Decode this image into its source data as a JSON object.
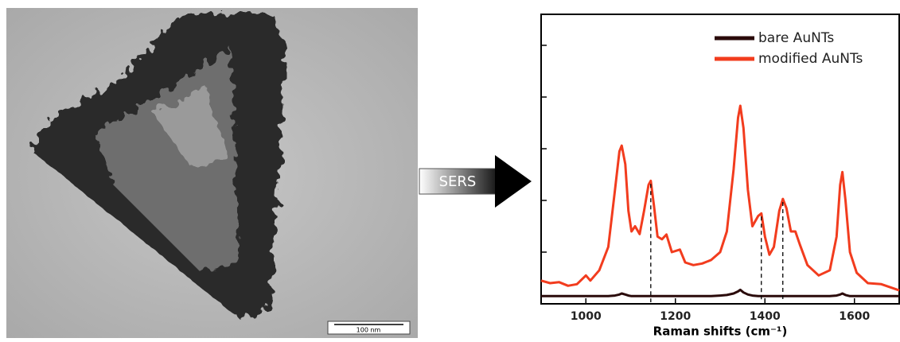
{
  "image": {
    "scale_bar": "100 nm"
  },
  "arrow": {
    "label": "SERS"
  },
  "chart_data": {
    "type": "line",
    "x_label": "Raman shifts (cm⁻¹)",
    "x": [
      900,
      920,
      940,
      960,
      980,
      1000,
      1010,
      1030,
      1050,
      1065,
      1075,
      1080,
      1088,
      1095,
      1102,
      1110,
      1120,
      1130,
      1140,
      1145,
      1152,
      1160,
      1170,
      1180,
      1192,
      1210,
      1222,
      1240,
      1260,
      1280,
      1300,
      1315,
      1330,
      1340,
      1345,
      1352,
      1362,
      1372,
      1385,
      1392,
      1400,
      1410,
      1420,
      1432,
      1440,
      1448,
      1458,
      1468,
      1478,
      1495,
      1520,
      1545,
      1560,
      1568,
      1573,
      1580,
      1590,
      1605,
      1630,
      1660,
      1700
    ],
    "series": [
      {
        "name": "bare AuNTs",
        "color": "#2a0a0a",
        "values": [
          0.15,
          0.15,
          0.15,
          0.15,
          0.15,
          0.15,
          0.15,
          0.15,
          0.15,
          0.16,
          0.18,
          0.2,
          0.18,
          0.16,
          0.15,
          0.15,
          0.15,
          0.15,
          0.15,
          0.15,
          0.15,
          0.15,
          0.15,
          0.15,
          0.15,
          0.15,
          0.15,
          0.15,
          0.15,
          0.15,
          0.16,
          0.17,
          0.2,
          0.24,
          0.27,
          0.22,
          0.18,
          0.16,
          0.15,
          0.15,
          0.15,
          0.15,
          0.15,
          0.15,
          0.15,
          0.15,
          0.15,
          0.15,
          0.15,
          0.15,
          0.15,
          0.15,
          0.16,
          0.18,
          0.2,
          0.17,
          0.15,
          0.15,
          0.15,
          0.15,
          0.15
        ]
      },
      {
        "name": "modified AuNTs",
        "color": "#f23c1e",
        "values": [
          0.45,
          0.4,
          0.42,
          0.35,
          0.38,
          0.55,
          0.45,
          0.65,
          1.1,
          2.2,
          2.95,
          3.06,
          2.7,
          1.8,
          1.4,
          1.5,
          1.35,
          1.8,
          2.3,
          2.38,
          1.9,
          1.3,
          1.25,
          1.34,
          1.0,
          1.05,
          0.8,
          0.75,
          0.78,
          0.85,
          1.0,
          1.4,
          2.6,
          3.6,
          3.83,
          3.4,
          2.2,
          1.5,
          1.7,
          1.75,
          1.3,
          0.95,
          1.1,
          1.8,
          2.03,
          1.85,
          1.4,
          1.4,
          1.15,
          0.75,
          0.55,
          0.65,
          1.3,
          2.3,
          2.55,
          2.0,
          1.0,
          0.6,
          0.4,
          0.38,
          0.26
        ]
      }
    ],
    "reference_lines_x": [
      1145,
      1392,
      1440
    ],
    "xlim": [
      900,
      1700
    ],
    "xticks": [
      1000,
      1200,
      1400,
      1600
    ],
    "ylim": [
      0,
      5.6
    ],
    "yticks": [
      1,
      2,
      3,
      4,
      5
    ],
    "legend": "upper right"
  }
}
